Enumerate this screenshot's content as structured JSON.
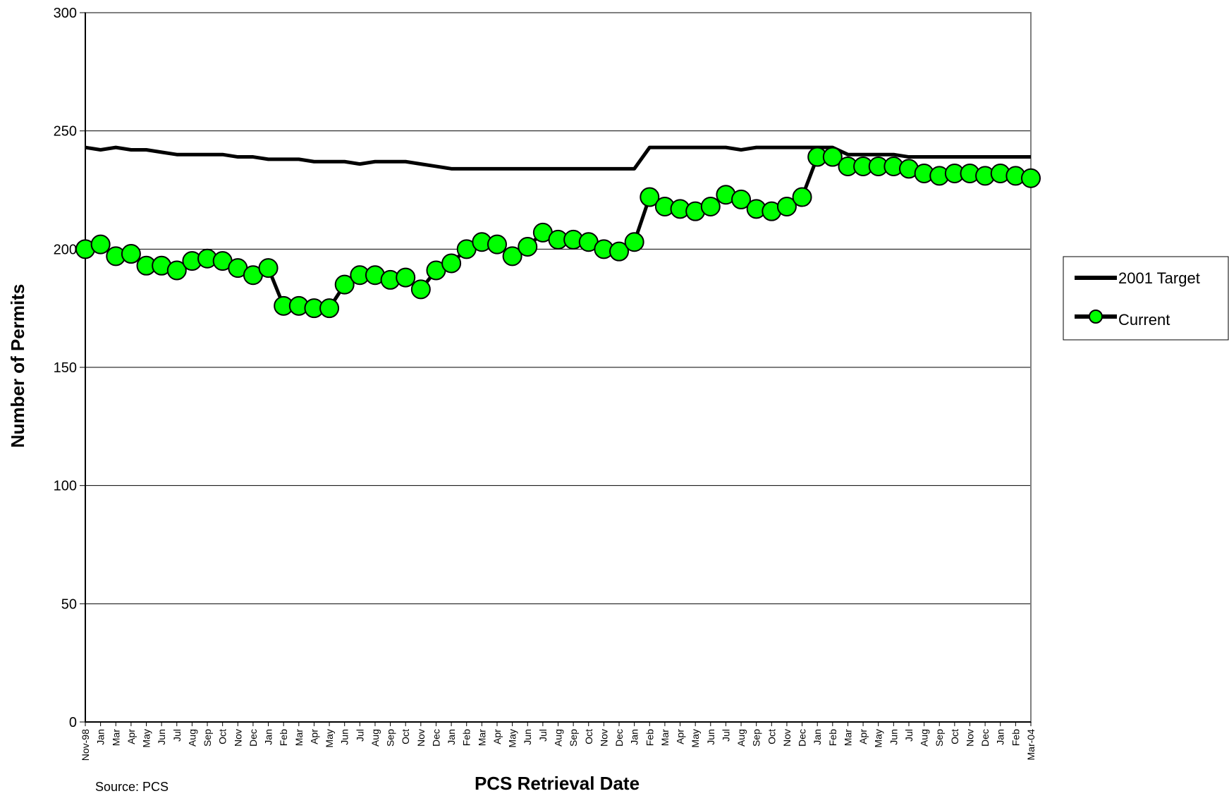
{
  "chart_data": {
    "type": "line",
    "title": "",
    "xlabel": "PCS Retrieval Date",
    "ylabel": "Number of Permits",
    "ylim": [
      0,
      300
    ],
    "yticks": [
      0,
      50,
      100,
      150,
      200,
      250,
      300
    ],
    "grid": "horizontal",
    "legend_position": "right",
    "categories": [
      "Nov-98",
      "Jan",
      "Mar",
      "Apr",
      "May",
      "Jun",
      "Jul",
      "Aug",
      "Sep",
      "Oct",
      "Nov",
      "Dec",
      "Jan",
      "Feb",
      "Mar",
      "Apr",
      "May",
      "Jun",
      "Jul",
      "Aug",
      "Sep",
      "Oct",
      "Nov",
      "Dec",
      "Jan",
      "Feb",
      "Mar",
      "Apr",
      "May",
      "Jun",
      "Jul",
      "Aug",
      "Sep",
      "Oct",
      "Nov",
      "Dec",
      "Jan",
      "Feb",
      "Mar",
      "Apr",
      "May",
      "Jun",
      "Jul",
      "Aug",
      "Sep",
      "Oct",
      "Nov",
      "Dec",
      "Jan",
      "Feb",
      "Mar",
      "Apr",
      "May",
      "Jun",
      "Jul",
      "Aug",
      "Sep",
      "Oct",
      "Nov",
      "Dec",
      "Jan",
      "Feb",
      "Mar-04"
    ],
    "series": [
      {
        "name": "2001 Target",
        "color": "#000000",
        "marker": "none",
        "values": [
          243,
          242,
          243,
          242,
          242,
          241,
          240,
          240,
          240,
          240,
          239,
          239,
          238,
          238,
          238,
          237,
          237,
          237,
          236,
          237,
          237,
          237,
          236,
          235,
          234,
          234,
          234,
          234,
          234,
          234,
          234,
          234,
          234,
          234,
          234,
          234,
          234,
          243,
          243,
          243,
          243,
          243,
          243,
          242,
          243,
          243,
          243,
          243,
          243,
          243,
          240,
          240,
          240,
          240,
          239,
          239,
          239,
          239,
          239,
          239,
          239,
          239,
          239
        ]
      },
      {
        "name": "Current",
        "color": "#000000",
        "marker_fill": "#00ff00",
        "marker": "circle",
        "values": [
          200,
          202,
          197,
          198,
          193,
          193,
          191,
          195,
          196,
          195,
          192,
          189,
          192,
          176,
          176,
          175,
          175,
          185,
          189,
          189,
          187,
          188,
          183,
          191,
          194,
          200,
          203,
          202,
          197,
          201,
          207,
          204,
          204,
          203,
          200,
          199,
          203,
          222,
          218,
          217,
          216,
          218,
          223,
          221,
          217,
          216,
          218,
          222,
          239,
          239,
          235,
          235,
          235,
          235,
          234,
          232,
          231,
          232,
          232,
          231,
          232,
          231,
          230
        ]
      }
    ]
  },
  "source_note": "Source:  PCS",
  "colors": {
    "plot_border": "#808080",
    "gridline": "#000000",
    "marker_fill": "#00ff00"
  }
}
